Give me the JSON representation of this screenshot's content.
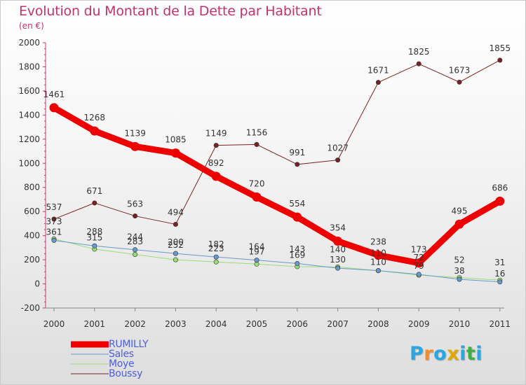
{
  "title": "Evolution du Montant de la Dette par Habitant",
  "subtitle": "(en €)",
  "logo": {
    "letters": [
      "P",
      "r",
      "o",
      "x",
      "i",
      "t",
      "i"
    ],
    "colors": [
      "#2aa7e0",
      "#f28c28",
      "#2aa7e0",
      "#e0a800",
      "#2aa7e0",
      "#3cb043",
      "#2aa7e0"
    ]
  },
  "chart_data": {
    "type": "line",
    "categories": [
      "2000",
      "2001",
      "2002",
      "2003",
      "2004",
      "2005",
      "2006",
      "2007",
      "2008",
      "2009",
      "2010",
      "2011"
    ],
    "ylim": [
      -200,
      2000
    ],
    "yticks": [
      -200,
      0,
      200,
      400,
      600,
      800,
      1000,
      1200,
      1400,
      1600,
      1800,
      2000
    ],
    "grid": false,
    "legend_placement": "bottom-left",
    "series": [
      {
        "name": "RUMILLY",
        "color": "#ee0000",
        "values": [
          1461,
          1268,
          1139,
          1085,
          892,
          720,
          554,
          354,
          238,
          173,
          495,
          686
        ],
        "labels": [
          "1461",
          "1268",
          "1139",
          "1085",
          "892",
          "720",
          "554",
          "354",
          "238",
          "173",
          "495",
          "686"
        ]
      },
      {
        "name": "Sales",
        "color": "#6699cc",
        "values": [
          361,
          315,
          283,
          252,
          223,
          197,
          169,
          130,
          110,
          79,
          38,
          16
        ],
        "labels": [
          "361",
          "315",
          "283",
          "252",
          "223",
          "197",
          "169",
          "130",
          "110",
          "79",
          "38",
          "16"
        ]
      },
      {
        "name": "Moye",
        "color": "#99dd77",
        "values": [
          373,
          288,
          244,
          200,
          182,
          164,
          143,
          140,
          110,
          72,
          52,
          31
        ],
        "labels": [
          "373",
          "288",
          "244",
          "200",
          "182",
          "164",
          "143",
          "140",
          "110",
          "72",
          "52",
          "31"
        ]
      },
      {
        "name": "Boussy",
        "color": "#772222",
        "values": [
          537,
          671,
          563,
          494,
          1149,
          1156,
          991,
          1027,
          1671,
          1825,
          1673,
          1855
        ],
        "labels": [
          "537",
          "671",
          "563",
          "494",
          "1149",
          "1156",
          "991",
          "1027",
          "1671",
          "1825",
          "1673",
          "1855"
        ]
      }
    ]
  }
}
